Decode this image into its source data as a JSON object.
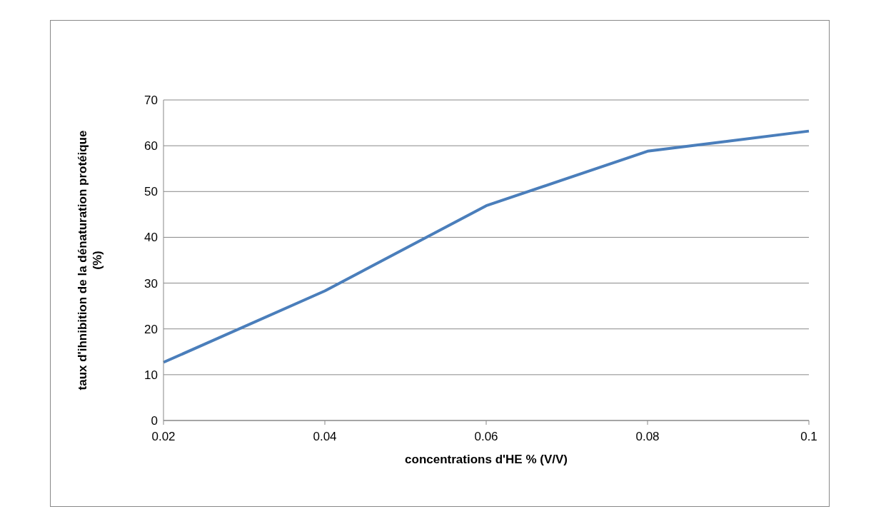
{
  "chart_data": {
    "type": "line",
    "xlabel": "concentrations d'HE % (V/V)",
    "ylabel": "taux d'ihnibition de la dénaturation protéique (%)",
    "categories": [
      "0.02",
      "0.04",
      "0.06",
      "0.08",
      "0.1"
    ],
    "series": [
      {
        "color": "#4a7ebb",
        "values": [
          12.7,
          28.3,
          46.9,
          58.8,
          63.2
        ]
      }
    ],
    "ylim": [
      0,
      70
    ],
    "yticks": [
      0,
      10,
      20,
      30,
      40,
      50,
      60,
      70
    ],
    "grid": "y",
    "legend": false,
    "marker": "none",
    "line_style": "solid"
  }
}
